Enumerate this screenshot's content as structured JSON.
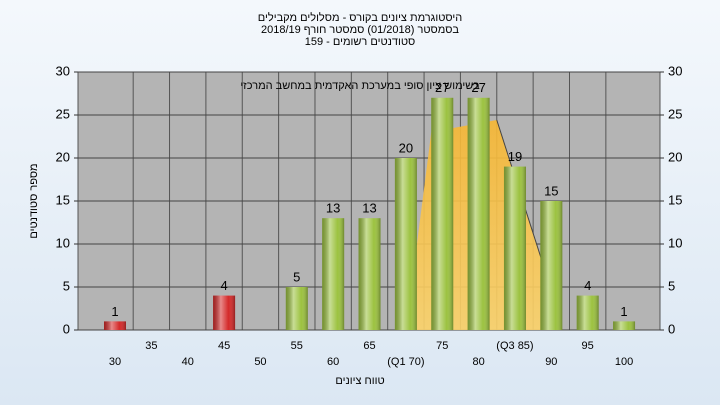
{
  "chart_data": {
    "type": "bar",
    "title": "היסטוגרמת ציונים בקורס - מסלולים מקבילים",
    "subtitle": "בסמסטר  (01/2018)  סמסטר חורף 2018/19",
    "subtitle2": "סטודנטים רשומים - 159",
    "annotation": "בשימוש ציון סופי במערכת האקדמית במחשב המרכזי",
    "y_label": "מספר סטודנטים",
    "x_label": "טווח ציונים",
    "categories": [
      "30",
      "35",
      "40",
      "45",
      "50",
      "55",
      "60",
      "65",
      "(Q1 70)",
      "75",
      "80",
      "(Q3 85)",
      "90",
      "95",
      "100"
    ],
    "values": [
      1,
      0,
      0,
      4,
      0,
      5,
      13,
      13,
      20,
      27,
      27,
      19,
      15,
      4,
      1
    ],
    "colors": [
      "#d42a2a",
      "#9cc240",
      "#9cc240",
      "#d42a2a",
      "#9cc240",
      "#9cc240",
      "#9cc240",
      "#9cc240",
      "#9cc240",
      "#9cc240",
      "#9cc240",
      "#9cc240",
      "#9cc240",
      "#9cc240",
      "#9cc240"
    ],
    "ylim": [
      0,
      30
    ],
    "yticks": [
      0,
      5,
      10,
      15,
      20,
      25,
      30
    ],
    "y2lim": [
      0,
      30
    ],
    "y2ticks": [
      0,
      5,
      10,
      15,
      20,
      25,
      30
    ],
    "grid": true
  }
}
